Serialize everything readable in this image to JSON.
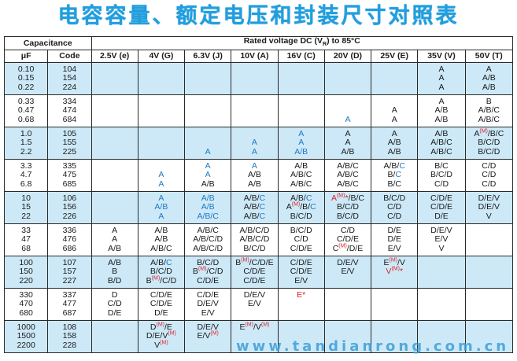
{
  "title": "电容容量、额定电压和封装尺寸对照表",
  "header": {
    "capacitance": "Capacitance",
    "rated_voltage": "Rated voltage DC (V",
    "rated_sub": "R",
    "rated_tail": ") to 85°C",
    "uf": "μF",
    "code": "Code",
    "voltages": [
      "2.5V (e)",
      "4V (G)",
      "6.3V (J)",
      "10V (A)",
      "16V (C)",
      "20V (D)",
      "25V (E)",
      "35V (V)",
      "50V (T)"
    ]
  },
  "watermark": "www.tandianrong.com.cn",
  "colors": {
    "blue_row": "#cde9f8",
    "blue_text": "#1e78c2",
    "red_text": "#e0202a",
    "title": "#1f9fe0"
  },
  "rows": [
    {
      "uf": [
        "0.10",
        "0.15",
        "0.22"
      ],
      "code": [
        "104",
        "154",
        "224"
      ],
      "alt": true,
      "cells": [
        [],
        [],
        [],
        [],
        [],
        [],
        [],
        [
          [
            [
              "k",
              "A"
            ]
          ],
          [
            [
              "k",
              "A"
            ]
          ],
          [
            [
              "k",
              "A"
            ]
          ]
        ],
        [
          [
            [
              "k",
              "A"
            ]
          ],
          [
            [
              "k",
              "A/B"
            ]
          ],
          [
            [
              "k",
              "A/B"
            ]
          ]
        ]
      ]
    },
    {
      "uf": [
        "0.33",
        "0.47",
        "0.68"
      ],
      "code": [
        "334",
        "474",
        "684"
      ],
      "alt": false,
      "cells": [
        [],
        [],
        [],
        [],
        [],
        [
          [],
          [],
          [
            [
              "b",
              "A"
            ]
          ]
        ],
        [
          [],
          [
            [
              "k",
              "A"
            ]
          ],
          [
            [
              "k",
              "A"
            ]
          ]
        ],
        [
          [
            [
              "k",
              "A"
            ]
          ],
          [
            [
              "k",
              "A/B"
            ]
          ],
          [
            [
              "k",
              "A/B"
            ]
          ]
        ],
        [
          [
            [
              "k",
              "B"
            ]
          ],
          [
            [
              "k",
              "A/B/C"
            ]
          ],
          [
            [
              "k",
              "A/B/C"
            ]
          ]
        ]
      ]
    },
    {
      "uf": [
        "1.0",
        "1.5",
        "2.2"
      ],
      "code": [
        "105",
        "155",
        "225"
      ],
      "alt": true,
      "cells": [
        [],
        [],
        [
          [],
          [],
          [
            [
              "b",
              "A"
            ]
          ]
        ],
        [
          [],
          [
            [
              "b",
              "A"
            ]
          ],
          [
            [
              "b",
              "A"
            ]
          ]
        ],
        [
          [
            [
              "b",
              "A"
            ]
          ],
          [
            [
              "b",
              "A"
            ]
          ],
          [
            [
              "b",
              "A/B"
            ]
          ]
        ],
        [
          [
            [
              "k",
              "A"
            ]
          ],
          [
            [
              "k",
              "A"
            ]
          ],
          [
            [
              "k",
              "A/B"
            ]
          ]
        ],
        [
          [
            [
              "k",
              "A"
            ]
          ],
          [
            [
              "k",
              "A/B"
            ]
          ],
          [
            [
              "k",
              "A/B"
            ]
          ]
        ],
        [
          [
            [
              "k",
              "A/B"
            ]
          ],
          [
            [
              "k",
              "A/B/C"
            ]
          ],
          [
            [
              "k",
              "A/B/C"
            ]
          ]
        ],
        [
          [
            [
              "k",
              "A"
            ],
            [
              "m",
              "(M)"
            ],
            [
              "k",
              "/B/C"
            ]
          ],
          [
            [
              "k",
              "B/C/D"
            ]
          ],
          [
            [
              "k",
              "B/C/D"
            ]
          ]
        ]
      ]
    },
    {
      "uf": [
        "3.3",
        "4.7",
        "6.8"
      ],
      "code": [
        "335",
        "475",
        "685"
      ],
      "alt": false,
      "cells": [
        [],
        [
          [],
          [
            [
              "b",
              "A"
            ]
          ],
          [
            [
              "b",
              "A"
            ]
          ]
        ],
        [
          [
            [
              "b",
              "A"
            ]
          ],
          [
            [
              "b",
              "A"
            ]
          ],
          [
            [
              "k",
              "A/B"
            ]
          ]
        ],
        [
          [
            [
              "b",
              "A"
            ]
          ],
          [
            [
              "k",
              "A/B"
            ]
          ],
          [
            [
              "k",
              "A/B"
            ]
          ]
        ],
        [
          [
            [
              "k",
              "A/B"
            ]
          ],
          [
            [
              "k",
              "A/B/C"
            ]
          ],
          [
            [
              "k",
              "A/B/C"
            ]
          ]
        ],
        [
          [
            [
              "k",
              "A/B/C"
            ]
          ],
          [
            [
              "k",
              "A/B/C"
            ]
          ],
          [
            [
              "k",
              "A/B/C"
            ]
          ]
        ],
        [
          [
            [
              "k",
              "A/B/"
            ],
            [
              "b",
              "C"
            ]
          ],
          [
            [
              "k",
              "B/"
            ],
            [
              "b",
              "C"
            ]
          ],
          [
            [
              "k",
              "B/C"
            ]
          ]
        ],
        [
          [
            [
              "k",
              "B/C"
            ]
          ],
          [
            [
              "k",
              "B/C/D"
            ]
          ],
          [
            [
              "k",
              "C/D"
            ]
          ]
        ],
        [
          [
            [
              "k",
              "C/D"
            ]
          ],
          [
            [
              "k",
              "C/D"
            ]
          ],
          [
            [
              "k",
              "C/D"
            ]
          ]
        ]
      ]
    },
    {
      "uf": [
        "10",
        "15",
        "22"
      ],
      "code": [
        "106",
        "156",
        "226"
      ],
      "alt": true,
      "cells": [
        [],
        [
          [
            [
              "b",
              "A"
            ]
          ],
          [
            [
              "b",
              "A/B"
            ]
          ],
          [
            [
              "b",
              "A"
            ]
          ]
        ],
        [
          [
            [
              "b",
              "A/B"
            ]
          ],
          [
            [
              "b",
              "A/B"
            ]
          ],
          [
            [
              "b",
              "A/B/C"
            ]
          ]
        ],
        [
          [
            [
              "k",
              "A/B/"
            ],
            [
              "b",
              "C"
            ]
          ],
          [
            [
              "k",
              "A/B/"
            ],
            [
              "b",
              "C"
            ]
          ],
          [
            [
              "k",
              "A/B/"
            ],
            [
              "b",
              "C"
            ]
          ]
        ],
        [
          [
            [
              "k",
              "A/B/"
            ],
            [
              "b",
              "C"
            ]
          ],
          [
            [
              "k",
              "A"
            ],
            [
              "m",
              "(M)"
            ],
            [
              "k",
              "/B/"
            ],
            [
              "b",
              "C"
            ]
          ],
          [
            [
              "k",
              "B/C/D"
            ]
          ]
        ],
        [
          [
            [
              "r",
              "A"
            ],
            [
              "m",
              "(M)"
            ],
            [
              "r",
              "*"
            ],
            [
              "k",
              "/B/C"
            ]
          ],
          [
            [
              "k",
              "B/C/D"
            ]
          ],
          [
            [
              "k",
              "B/C/D"
            ]
          ]
        ],
        [
          [
            [
              "k",
              "B/C/D"
            ]
          ],
          [
            [
              "k",
              "C/D"
            ]
          ],
          [
            [
              "k",
              "C/D"
            ]
          ]
        ],
        [
          [
            [
              "k",
              "C/D/E"
            ]
          ],
          [
            [
              "k",
              "C/D/E"
            ]
          ],
          [
            [
              "k",
              "D/E"
            ]
          ]
        ],
        [
          [
            [
              "k",
              "D/E/V"
            ]
          ],
          [
            [
              "k",
              "D/E/V"
            ]
          ],
          [
            [
              "k",
              "V"
            ]
          ]
        ]
      ]
    },
    {
      "uf": [
        "33",
        "47",
        "68"
      ],
      "code": [
        "336",
        "476",
        "686"
      ],
      "alt": false,
      "cells": [
        [
          [
            [
              "k",
              "A"
            ]
          ],
          [
            [
              "k",
              "A"
            ]
          ],
          [
            [
              "k",
              "A/B"
            ]
          ]
        ],
        [
          [
            [
              "k",
              "A/B"
            ]
          ],
          [
            [
              "k",
              "A/B"
            ]
          ],
          [
            [
              "k",
              "A/B/C"
            ]
          ]
        ],
        [
          [
            [
              "k",
              "A/B/C"
            ]
          ],
          [
            [
              "k",
              "A/B/C/D"
            ]
          ],
          [
            [
              "k",
              "A/B/C/D"
            ]
          ]
        ],
        [
          [
            [
              "k",
              "A/B/C/D"
            ]
          ],
          [
            [
              "k",
              "A/B/C/D"
            ]
          ],
          [
            [
              "k",
              "B/C/D"
            ]
          ]
        ],
        [
          [
            [
              "k",
              "B/C/D"
            ]
          ],
          [
            [
              "k",
              "C/D"
            ]
          ],
          [
            [
              "k",
              "C/D/E"
            ]
          ]
        ],
        [
          [
            [
              "k",
              "C/D"
            ]
          ],
          [
            [
              "k",
              "C/D/E"
            ]
          ],
          [
            [
              "k",
              "C"
            ],
            [
              "m",
              "(M)"
            ],
            [
              "k",
              "/D/E"
            ]
          ]
        ],
        [
          [
            [
              "k",
              "D/E"
            ]
          ],
          [
            [
              "k",
              "D/E"
            ]
          ],
          [
            [
              "k",
              "E/V"
            ]
          ]
        ],
        [
          [
            [
              "k",
              "D/E/V"
            ]
          ],
          [
            [
              "k",
              "E/V"
            ]
          ],
          [
            [
              "k",
              "V"
            ]
          ]
        ],
        []
      ]
    },
    {
      "uf": [
        "100",
        "150",
        "220"
      ],
      "code": [
        "107",
        "157",
        "227"
      ],
      "alt": true,
      "cells": [
        [
          [
            [
              "k",
              "A/B"
            ]
          ],
          [
            [
              "k",
              "B"
            ]
          ],
          [
            [
              "k",
              "B/D"
            ]
          ]
        ],
        [
          [
            [
              "k",
              "A/B/"
            ],
            [
              "b",
              "C"
            ]
          ],
          [
            [
              "k",
              "B/C/D"
            ]
          ],
          [
            [
              "k",
              "B"
            ],
            [
              "m",
              "(M)"
            ],
            [
              "k",
              "/C/D"
            ]
          ]
        ],
        [
          [
            [
              "k",
              "B/C/D"
            ]
          ],
          [
            [
              "k",
              "B"
            ],
            [
              "m",
              "(M)"
            ],
            [
              "k",
              "/C/D"
            ]
          ],
          [
            [
              "k",
              "C/D/E"
            ]
          ]
        ],
        [
          [
            [
              "k",
              "B"
            ],
            [
              "m",
              "(M)"
            ],
            [
              "k",
              "/C/D/E"
            ]
          ],
          [
            [
              "k",
              "C/D/E"
            ]
          ],
          [
            [
              "k",
              "C/D/E"
            ]
          ]
        ],
        [
          [
            [
              "k",
              "C/D/E"
            ]
          ],
          [
            [
              "k",
              "C/D/E"
            ]
          ],
          [
            [
              "k",
              "E/V"
            ]
          ]
        ],
        [
          [
            [
              "k",
              "D/E/V"
            ]
          ],
          [
            [
              "k",
              "E/V"
            ]
          ],
          []
        ],
        [
          [
            [
              "k",
              "E"
            ],
            [
              "m",
              "(M)"
            ],
            [
              "k",
              "/V"
            ]
          ],
          [
            [
              "r",
              "V"
            ],
            [
              "m",
              "(M)"
            ],
            [
              "r",
              "*"
            ]
          ],
          []
        ],
        [],
        []
      ]
    },
    {
      "uf": [
        "330",
        "470",
        "680"
      ],
      "code": [
        "337",
        "477",
        "687"
      ],
      "alt": false,
      "cells": [
        [
          [
            [
              "k",
              "D"
            ]
          ],
          [
            [
              "k",
              "C/D"
            ]
          ],
          [
            [
              "k",
              "D/E"
            ]
          ]
        ],
        [
          [
            [
              "k",
              "C/D/E"
            ]
          ],
          [
            [
              "k",
              "C/D/E"
            ]
          ],
          [
            [
              "k",
              "D/E"
            ]
          ]
        ],
        [
          [
            [
              "k",
              "C/D/E"
            ]
          ],
          [
            [
              "k",
              "D/E/V"
            ]
          ],
          [
            [
              "k",
              "E/V"
            ]
          ]
        ],
        [
          [
            [
              "k",
              "D/E/V"
            ]
          ],
          [
            [
              "k",
              "E/V"
            ]
          ],
          []
        ],
        [
          [
            [
              "r",
              "E*"
            ]
          ],
          [],
          []
        ],
        [],
        [],
        [],
        []
      ]
    },
    {
      "uf": [
        "1000",
        "1500",
        "2200"
      ],
      "code": [
        "108",
        "158",
        "228"
      ],
      "alt": true,
      "cells": [
        [],
        [
          [
            [
              "k",
              "D"
            ],
            [
              "m",
              "(M)"
            ],
            [
              "k",
              "/E"
            ]
          ],
          [
            [
              "k",
              "D/E/V"
            ],
            [
              "m",
              "(M)"
            ]
          ],
          [
            [
              "k",
              "V"
            ],
            [
              "m",
              "(M)"
            ]
          ]
        ],
        [
          [
            [
              "k",
              "D/E/V"
            ]
          ],
          [
            [
              "k",
              "E/V"
            ],
            [
              "m",
              "(M)"
            ]
          ],
          []
        ],
        [
          [
            [
              "k",
              "E"
            ],
            [
              "m",
              "(M)"
            ],
            [
              "k",
              "/V"
            ],
            [
              "m",
              "(M)"
            ]
          ],
          [],
          []
        ],
        [],
        [],
        [],
        [],
        []
      ]
    }
  ]
}
